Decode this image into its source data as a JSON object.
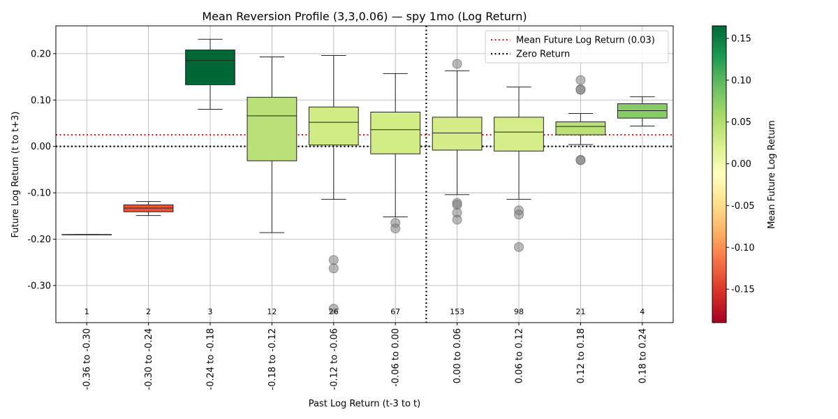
{
  "chart_data": {
    "type": "box",
    "title": "Mean Reversion Profile (3,3,0.06) — spy 1mo (Log Return)",
    "xlabel": "Past Log Return (t-3 to t)",
    "ylabel": "Future Log Return (t to t+3)",
    "ylim": [
      -0.38,
      0.26
    ],
    "yticks": [
      -0.3,
      -0.2,
      -0.1,
      0.0,
      0.1,
      0.2
    ],
    "ytick_labels": [
      "-0.30",
      "-0.20",
      "-0.10",
      "0.00",
      "0.10",
      "0.20"
    ],
    "grid": true,
    "categories": [
      "-0.36 to -0.30",
      "-0.30 to -0.24",
      "-0.24 to -0.18",
      "-0.18 to -0.12",
      "-0.12 to -0.06",
      "-0.06 to 0.00",
      "0.00 to 0.06",
      "0.06 to 0.12",
      "0.12 to 0.18",
      "0.18 to 0.24"
    ],
    "counts": [
      "1",
      "2",
      "3",
      "12",
      "26",
      "67",
      "153",
      "98",
      "21",
      "4"
    ],
    "boxes": [
      {
        "whisker_low": -0.19,
        "q1": -0.19,
        "median": -0.19,
        "q3": -0.19,
        "whisker_high": -0.19,
        "mean": -0.19,
        "outliers": []
      },
      {
        "whisker_low": -0.149,
        "q1": -0.141,
        "median": -0.133,
        "q3": -0.126,
        "whisker_high": -0.119,
        "mean": -0.133,
        "outliers": []
      },
      {
        "whisker_low": 0.08,
        "q1": 0.133,
        "median": 0.185,
        "q3": 0.208,
        "whisker_high": 0.231,
        "mean": 0.165,
        "outliers": []
      },
      {
        "whisker_low": -0.186,
        "q1": -0.031,
        "median": 0.066,
        "q3": 0.106,
        "whisker_high": 0.193,
        "mean": 0.045,
        "outliers": []
      },
      {
        "whisker_low": -0.114,
        "q1": 0.003,
        "median": 0.052,
        "q3": 0.085,
        "whisker_high": 0.196,
        "mean": 0.03,
        "outliers": [
          -0.245,
          -0.263,
          -0.35
        ]
      },
      {
        "whisker_low": -0.152,
        "q1": -0.016,
        "median": 0.036,
        "q3": 0.074,
        "whisker_high": 0.157,
        "mean": 0.028,
        "outliers": [
          -0.165,
          -0.177
        ]
      },
      {
        "whisker_low": -0.104,
        "q1": -0.008,
        "median": 0.029,
        "q3": 0.063,
        "whisker_high": 0.163,
        "mean": 0.026,
        "outliers": [
          0.178,
          -0.122,
          -0.126,
          -0.143,
          -0.158
        ]
      },
      {
        "whisker_low": -0.114,
        "q1": -0.01,
        "median": 0.031,
        "q3": 0.063,
        "whisker_high": 0.128,
        "mean": 0.025,
        "outliers": [
          -0.138,
          -0.147,
          -0.217
        ]
      },
      {
        "whisker_low": 0.004,
        "q1": 0.025,
        "median": 0.043,
        "q3": 0.053,
        "whisker_high": 0.071,
        "mean": 0.045,
        "outliers": [
          0.143,
          0.123,
          0.122,
          -0.029,
          -0.03
        ]
      },
      {
        "whisker_low": 0.044,
        "q1": 0.061,
        "median": 0.077,
        "q3": 0.092,
        "whisker_high": 0.107,
        "mean": 0.075,
        "outliers": []
      }
    ],
    "reference_lines": [
      {
        "label": "Mean Future Log Return (0.03)",
        "y": 0.025,
        "color": "#e41a1c",
        "style": "dotted"
      },
      {
        "label": "Zero Return",
        "y": 0.0,
        "color": "#000000",
        "style": "dotted"
      }
    ],
    "vertical_divider": {
      "position": "between -0.06 to 0.00 and 0.00 to 0.06",
      "style": "dotted"
    },
    "legend_position": "top-right",
    "colorbar": {
      "label": "Mean Future Log Return",
      "colormap": "RdYlGn",
      "range": [
        -0.19,
        0.165
      ],
      "ticks": [
        -0.15,
        -0.1,
        -0.05,
        0.0,
        0.05,
        0.1,
        0.15
      ],
      "tick_labels": [
        "-0.15",
        "-0.10",
        "-0.05",
        "0.00",
        "0.05",
        "0.10",
        "0.15"
      ]
    }
  }
}
